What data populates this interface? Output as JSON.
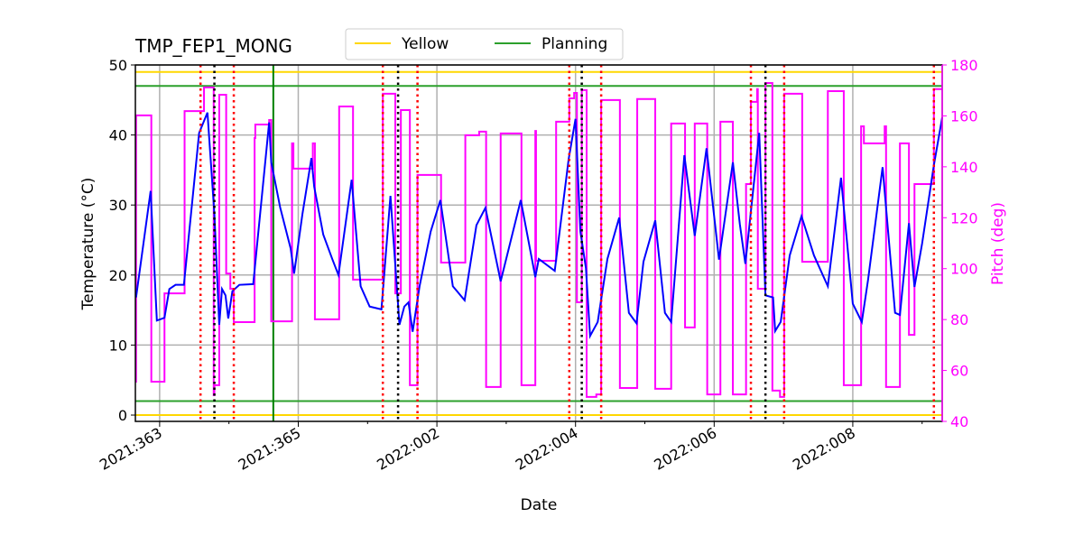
{
  "chart_data": {
    "type": "line",
    "title": "TMP_FEP1_MONG",
    "xlabel": "Date",
    "ylabel": "Temperature (°C)",
    "ylabel_right": "Pitch (deg)",
    "xlim": [
      "2021:362.65",
      "2022:009.29"
    ],
    "ylim": [
      -0.9,
      50
    ],
    "ylim_right": [
      40,
      180
    ],
    "grid": true,
    "legend_placement": "top-center, above plot",
    "x_ticks": [
      "2021:363",
      "2021:365",
      "2022:002",
      "2022:004",
      "2022:006",
      "2022:008"
    ],
    "y_ticks": [
      0,
      10,
      20,
      30,
      40,
      50
    ],
    "y_ticks_right": [
      40,
      60,
      80,
      100,
      120,
      140,
      160,
      180
    ],
    "legend": [
      {
        "name": "Yellow",
        "color": "#ffd700"
      },
      {
        "name": "Planning",
        "color": "#2ca02c"
      }
    ],
    "limit_lines": [
      {
        "name": "Yellow",
        "values": [
          49,
          0
        ],
        "color": "#ffd700"
      },
      {
        "name": "Planning",
        "values": [
          47,
          2
        ],
        "color": "#2ca02c"
      }
    ],
    "now_line": {
      "x": "2021:364.64",
      "color": "#008000"
    },
    "red_dotted_lines": [
      "2021:363.59",
      "2021:364.07",
      "2022:001.22",
      "2022:001.72",
      "2022:003.91",
      "2022:004.37",
      "2022:006.53",
      "2022:007.01",
      "2022:009.17"
    ],
    "black_dotted_lines": [
      "2021:363.79",
      "2022:001.44",
      "2022:004.09",
      "2022:006.74"
    ],
    "colors": {
      "temperature": "#0000ff",
      "pitch": "#ff00ff",
      "red_lines": "#ff0000",
      "black_lines": "#000000",
      "grid": "#b0b0b0"
    },
    "temperature": [
      [
        "2021:362.66",
        16.8
      ],
      [
        "2021:362.87",
        32.0
      ],
      [
        "2021:362.96",
        13.5
      ],
      [
        "2021:363.07",
        13.9
      ],
      [
        "2021:363.14",
        18.0
      ],
      [
        "2021:363.23",
        18.6
      ],
      [
        "2021:363.35",
        18.6
      ],
      [
        "2021:363.57",
        40.3
      ],
      [
        "2021:363.69",
        43.2
      ],
      [
        "2021:363.79",
        28.7
      ],
      [
        "2021:363.86",
        12.9
      ],
      [
        "2021:363.90",
        18.0
      ],
      [
        "2021:363.95",
        17.1
      ],
      [
        "2021:363.99",
        13.8
      ],
      [
        "2021:364.05",
        17.7
      ],
      [
        "2021:364.15",
        18.6
      ],
      [
        "2021:364.35",
        18.7
      ],
      [
        "2021:364.58",
        41.8
      ],
      [
        "2021:364.61",
        36.1
      ],
      [
        "2021:364.74",
        29.6
      ],
      [
        "2021:364.89",
        23.8
      ],
      [
        "2021:364.94",
        20.2
      ],
      [
        "2021:365.06",
        28.7
      ],
      [
        "2021:365.19",
        36.7
      ],
      [
        "2021:365.23",
        32.6
      ],
      [
        "2021:365.36",
        25.8
      ],
      [
        "2021:365.49",
        22.3
      ],
      [
        "2021:365.58",
        20.0
      ],
      [
        "2021:365.77",
        33.6
      ],
      [
        "2021:365.90",
        18.4
      ],
      [
        "2022:001.03",
        15.5
      ],
      [
        "2022:001.20",
        15.1
      ],
      [
        "2022:001.33",
        31.3
      ],
      [
        "2022:001.46",
        12.9
      ],
      [
        "2022:001.53",
        15.5
      ],
      [
        "2022:001.59",
        16.1
      ],
      [
        "2022:001.65",
        11.9
      ],
      [
        "2022:001.75",
        18.4
      ],
      [
        "2022:001.91",
        26.2
      ],
      [
        "2022:002.05",
        30.7
      ],
      [
        "2022:002.23",
        18.4
      ],
      [
        "2022:002.40",
        16.4
      ],
      [
        "2022:002.57",
        27.1
      ],
      [
        "2022:002.70",
        29.6
      ],
      [
        "2022:002.92",
        19.1
      ],
      [
        "2022:003.21",
        30.7
      ],
      [
        "2022:003.42",
        19.7
      ],
      [
        "2022:003.47",
        22.3
      ],
      [
        "2022:003.70",
        20.6
      ],
      [
        "2022:003.90",
        36.5
      ],
      [
        "2022:004.00",
        42.3
      ],
      [
        "2022:004.07",
        26.2
      ],
      [
        "2022:004.15",
        21.0
      ],
      [
        "2022:004.21",
        11.3
      ],
      [
        "2022:004.32",
        13.3
      ],
      [
        "2022:004.46",
        22.3
      ],
      [
        "2022:004.63",
        28.2
      ],
      [
        "2022:004.77",
        14.6
      ],
      [
        "2022:004.88",
        13.1
      ],
      [
        "2022:004.98",
        21.9
      ],
      [
        "2022:005.15",
        27.8
      ],
      [
        "2022:005.29",
        14.6
      ],
      [
        "2022:005.38",
        13.3
      ],
      [
        "2022:005.57",
        37.1
      ],
      [
        "2022:005.72",
        25.6
      ],
      [
        "2022:005.89",
        38.1
      ],
      [
        "2022:006.07",
        22.2
      ],
      [
        "2022:006.27",
        36.1
      ],
      [
        "2022:006.37",
        27.3
      ],
      [
        "2022:006.45",
        21.6
      ],
      [
        "2022:006.65",
        40.3
      ],
      [
        "2022:006.74",
        17.1
      ],
      [
        "2022:006.85",
        16.8
      ],
      [
        "2022:006.88",
        12.0
      ],
      [
        "2022:006.96",
        13.3
      ],
      [
        "2022:007.09",
        22.8
      ],
      [
        "2022:007.26",
        28.4
      ],
      [
        "2022:007.44",
        22.8
      ],
      [
        "2022:007.64",
        18.4
      ],
      [
        "2022:007.83",
        33.9
      ],
      [
        "2022:008.00",
        15.9
      ],
      [
        "2022:008.13",
        13.3
      ],
      [
        "2022:008.22",
        19.3
      ],
      [
        "2022:008.43",
        35.4
      ],
      [
        "2022:008.61",
        14.6
      ],
      [
        "2022:008.68",
        14.3
      ],
      [
        "2022:008.81",
        27.4
      ],
      [
        "2022:008.89",
        18.3
      ],
      [
        "2022:009.00",
        24.5
      ],
      [
        "2022:009.17",
        35.7
      ],
      [
        "2022:009.29",
        42.5
      ]
    ],
    "pitch_steps": [
      [
        "2021:362.65",
        55.6
      ],
      [
        "2021:362.66",
        160.2
      ],
      [
        "2021:362.88",
        55.6
      ],
      [
        "2021:363.07",
        90.3
      ],
      [
        "2021:363.36",
        161.9
      ],
      [
        "2021:363.64",
        171.2
      ],
      [
        "2021:363.78",
        50.3
      ],
      [
        "2021:363.79",
        54.2
      ],
      [
        "2021:363.86",
        168.3
      ],
      [
        "2021:363.96",
        98.1
      ],
      [
        "2021:364.02",
        92.1
      ],
      [
        "2021:364.07",
        79.0
      ],
      [
        "2021:364.37",
        151.3
      ],
      [
        "2021:364.38",
        156.6
      ],
      [
        "2021:364.58",
        158.4
      ],
      [
        "2021:364.61",
        79.3
      ],
      [
        "2021:364.91",
        149.2
      ],
      [
        "2021:364.93",
        139.3
      ],
      [
        "2021:365.21",
        149.2
      ],
      [
        "2021:365.24",
        80.1
      ],
      [
        "2021:365.59",
        163.7
      ],
      [
        "2021:365.79",
        95.7
      ],
      [
        "2022:001.22",
        168.7
      ],
      [
        "2022:001.40",
        90.3
      ],
      [
        "2022:001.48",
        162.3
      ],
      [
        "2022:001.61",
        54.2
      ],
      [
        "2022:001.72",
        136.8
      ],
      [
        "2022:002.06",
        102.4
      ],
      [
        "2022:002.41",
        152.4
      ],
      [
        "2022:002.61",
        153.8
      ],
      [
        "2022:002.71",
        53.5
      ],
      [
        "2022:002.92",
        153.1
      ],
      [
        "2022:003.22",
        54.2
      ],
      [
        "2022:003.42",
        154.1
      ],
      [
        "2022:003.43",
        103.1
      ],
      [
        "2022:003.72",
        157.7
      ],
      [
        "2022:003.91",
        166.9
      ],
      [
        "2022:003.98",
        169.0
      ],
      [
        "2022:004.02",
        86.8
      ],
      [
        "2022:004.09",
        170.1
      ],
      [
        "2022:004.16",
        49.6
      ],
      [
        "2022:004.30",
        50.6
      ],
      [
        "2022:004.37",
        166.2
      ],
      [
        "2022:004.64",
        53.1
      ],
      [
        "2022:004.89",
        166.6
      ],
      [
        "2022:005.15",
        52.8
      ],
      [
        "2022:005.38",
        157.0
      ],
      [
        "2022:005.58",
        76.9
      ],
      [
        "2022:005.72",
        157.0
      ],
      [
        "2022:005.90",
        50.6
      ],
      [
        "2022:006.09",
        157.7
      ],
      [
        "2022:006.27",
        50.6
      ],
      [
        "2022:006.46",
        133.2
      ],
      [
        "2022:006.53",
        165.5
      ],
      [
        "2022:006.62",
        170.5
      ],
      [
        "2022:006.63",
        92.1
      ],
      [
        "2022:006.74",
        172.9
      ],
      [
        "2022:006.84",
        52.1
      ],
      [
        "2022:006.95",
        49.6
      ],
      [
        "2022:007.01",
        168.7
      ],
      [
        "2022:007.27",
        102.7
      ],
      [
        "2022:007.64",
        169.7
      ],
      [
        "2022:007.87",
        54.2
      ],
      [
        "2022:008.12",
        155.9
      ],
      [
        "2022:008.16",
        149.2
      ],
      [
        "2022:008.46",
        155.9
      ],
      [
        "2022:008.48",
        53.5
      ],
      [
        "2022:008.68",
        149.2
      ],
      [
        "2022:008.81",
        74.0
      ],
      [
        "2022:008.89",
        133.2
      ],
      [
        "2022:009.17",
        170.5
      ],
      [
        "2022:009.29",
        170.5
      ]
    ]
  }
}
